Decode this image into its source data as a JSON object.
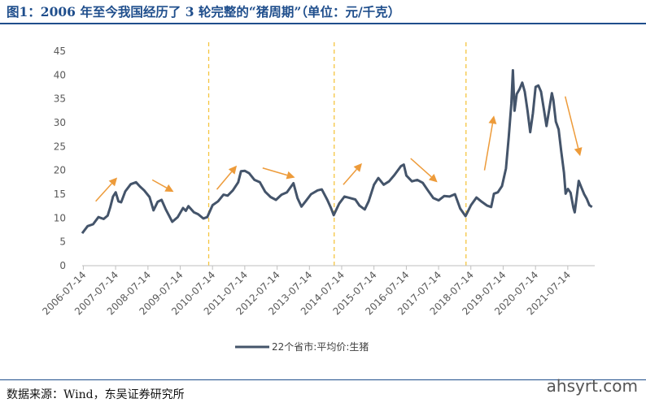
{
  "title": "图1：2006 年至今我国经历了 3 轮完整的“猪周期”（单位：元/千克）",
  "source": "数据来源：Wind，东吴证券研究所",
  "watermark": "ahsyrt.com",
  "colors": {
    "line": "#44546a",
    "arrow": "#ed9b3a",
    "divider": "#f5c540",
    "axis": "#bfbfbf"
  },
  "chart_data": {
    "type": "line",
    "title": "",
    "xlabel": "",
    "ylabel": "",
    "ylim": [
      0,
      45
    ],
    "yticks": [
      0,
      5,
      10,
      15,
      20,
      25,
      30,
      35,
      40,
      45
    ],
    "xlim": [
      "2006-07-01",
      "2022-05-15"
    ],
    "xticks": [
      "2006-07-14",
      "2007-07-14",
      "2008-07-14",
      "2009-07-14",
      "2010-07-14",
      "2011-07-14",
      "2012-07-14",
      "2013-07-14",
      "2014-07-14",
      "2015-07-14",
      "2016-07-14",
      "2017-07-14",
      "2018-07-14",
      "2019-07-14",
      "2020-07-14",
      "2021-07-14"
    ],
    "legend": {
      "position": "bottom",
      "label": "22个省市:平均价:生猪"
    },
    "grid": false,
    "dividers": [
      "2010-06-01",
      "2014-04-20",
      "2018-05-20"
    ],
    "arrows": [
      {
        "from": [
          "2006-12-01",
          13.5
        ],
        "to": [
          "2007-08-01",
          18.5
        ]
      },
      {
        "from": [
          "2008-09-01",
          18.0
        ],
        "to": [
          "2009-05-01",
          15.5
        ]
      },
      {
        "from": [
          "2010-09-01",
          16.0
        ],
        "to": [
          "2011-04-15",
          21.0
        ]
      },
      {
        "from": [
          "2012-02-01",
          20.5
        ],
        "to": [
          "2013-02-01",
          18.5
        ]
      },
      {
        "from": [
          "2014-08-01",
          17.0
        ],
        "to": [
          "2015-03-01",
          21.5
        ]
      },
      {
        "from": [
          "2016-09-01",
          22.5
        ],
        "to": [
          "2017-07-01",
          17.5
        ]
      },
      {
        "from": [
          "2018-12-15",
          20.0
        ],
        "to": [
          "2019-04-01",
          31.5
        ]
      },
      {
        "from": [
          "2021-06-15",
          35.5
        ],
        "to": [
          "2021-12-01",
          23.0
        ]
      }
    ],
    "series": [
      {
        "name": "22个省市:平均价:生猪",
        "points": [
          [
            "2006-07-01",
            6.8
          ],
          [
            "2006-09-01",
            8.3
          ],
          [
            "2006-11-01",
            8.7
          ],
          [
            "2007-01-01",
            10.2
          ],
          [
            "2007-03-01",
            9.8
          ],
          [
            "2007-04-15",
            10.5
          ],
          [
            "2007-05-15",
            12.3
          ],
          [
            "2007-06-15",
            14.5
          ],
          [
            "2007-07-15",
            15.4
          ],
          [
            "2007-08-15",
            13.5
          ],
          [
            "2007-09-15",
            13.3
          ],
          [
            "2007-11-01",
            15.6
          ],
          [
            "2008-01-01",
            17.1
          ],
          [
            "2008-03-01",
            17.5
          ],
          [
            "2008-04-15",
            16.6
          ],
          [
            "2008-06-01",
            15.8
          ],
          [
            "2008-08-01",
            14.4
          ],
          [
            "2008-09-15",
            11.6
          ],
          [
            "2008-11-01",
            13.4
          ],
          [
            "2008-12-15",
            13.8
          ],
          [
            "2009-02-01",
            11.8
          ],
          [
            "2009-03-15",
            10.3
          ],
          [
            "2009-04-15",
            9.2
          ],
          [
            "2009-06-15",
            10.2
          ],
          [
            "2009-08-15",
            12.1
          ],
          [
            "2009-09-15",
            11.5
          ],
          [
            "2009-10-15",
            12.5
          ],
          [
            "2009-12-15",
            11.2
          ],
          [
            "2010-02-01",
            10.8
          ],
          [
            "2010-04-01",
            9.9
          ],
          [
            "2010-05-15",
            10.2
          ],
          [
            "2010-07-15",
            12.7
          ],
          [
            "2010-09-15",
            13.5
          ],
          [
            "2010-11-15",
            14.9
          ],
          [
            "2011-01-01",
            14.7
          ],
          [
            "2011-03-01",
            15.8
          ],
          [
            "2011-05-01",
            17.5
          ],
          [
            "2011-06-01",
            19.8
          ],
          [
            "2011-07-15",
            19.9
          ],
          [
            "2011-09-01",
            19.4
          ],
          [
            "2011-11-01",
            18.0
          ],
          [
            "2012-01-01",
            17.5
          ],
          [
            "2012-03-01",
            15.5
          ],
          [
            "2012-05-01",
            14.4
          ],
          [
            "2012-07-01",
            13.8
          ],
          [
            "2012-09-01",
            14.9
          ],
          [
            "2012-11-01",
            15.4
          ],
          [
            "2013-01-15",
            17.3
          ],
          [
            "2013-03-01",
            14.2
          ],
          [
            "2013-04-15",
            12.4
          ],
          [
            "2013-06-01",
            13.5
          ],
          [
            "2013-08-01",
            15.0
          ],
          [
            "2013-10-15",
            15.8
          ],
          [
            "2013-12-01",
            16.0
          ],
          [
            "2014-02-01",
            13.8
          ],
          [
            "2014-03-15",
            12.1
          ],
          [
            "2014-04-15",
            10.6
          ],
          [
            "2014-06-15",
            13.0
          ],
          [
            "2014-08-15",
            14.5
          ],
          [
            "2014-10-15",
            14.2
          ],
          [
            "2014-12-15",
            13.9
          ],
          [
            "2015-02-01",
            12.6
          ],
          [
            "2015-04-01",
            11.8
          ],
          [
            "2015-05-15",
            13.5
          ],
          [
            "2015-07-15",
            17.0
          ],
          [
            "2015-09-01",
            18.4
          ],
          [
            "2015-11-01",
            17.0
          ],
          [
            "2016-01-01",
            17.7
          ],
          [
            "2016-03-01",
            19.0
          ],
          [
            "2016-05-15",
            20.9
          ],
          [
            "2016-06-15",
            21.2
          ],
          [
            "2016-07-15",
            18.9
          ],
          [
            "2016-09-15",
            17.7
          ],
          [
            "2016-11-15",
            18.0
          ],
          [
            "2017-01-15",
            17.4
          ],
          [
            "2017-03-15",
            15.8
          ],
          [
            "2017-05-15",
            14.2
          ],
          [
            "2017-07-15",
            13.7
          ],
          [
            "2017-09-15",
            14.6
          ],
          [
            "2017-11-15",
            14.5
          ],
          [
            "2018-01-15",
            15.0
          ],
          [
            "2018-03-15",
            12.0
          ],
          [
            "2018-05-15",
            10.4
          ],
          [
            "2018-07-15",
            12.7
          ],
          [
            "2018-09-15",
            14.3
          ],
          [
            "2018-11-15",
            13.4
          ],
          [
            "2019-01-15",
            12.6
          ],
          [
            "2019-03-01",
            12.3
          ],
          [
            "2019-04-01",
            15.1
          ],
          [
            "2019-05-15",
            15.4
          ],
          [
            "2019-07-01",
            16.7
          ],
          [
            "2019-08-15",
            20.4
          ],
          [
            "2019-09-15",
            27.0
          ],
          [
            "2019-10-15",
            34.0
          ],
          [
            "2019-11-01",
            41.0
          ],
          [
            "2019-11-20",
            32.5
          ],
          [
            "2019-12-15",
            36.0
          ],
          [
            "2020-01-15",
            37.0
          ],
          [
            "2020-02-15",
            38.4
          ],
          [
            "2020-03-15",
            36.5
          ],
          [
            "2020-04-15",
            32.5
          ],
          [
            "2020-05-15",
            28.0
          ],
          [
            "2020-06-15",
            32.0
          ],
          [
            "2020-07-15",
            37.5
          ],
          [
            "2020-08-15",
            37.8
          ],
          [
            "2020-09-15",
            36.5
          ],
          [
            "2020-10-15",
            33.0
          ],
          [
            "2020-11-15",
            29.3
          ],
          [
            "2020-12-15",
            32.6
          ],
          [
            "2021-01-15",
            36.2
          ],
          [
            "2021-02-01",
            34.8
          ],
          [
            "2021-03-01",
            30.2
          ],
          [
            "2021-04-01",
            28.6
          ],
          [
            "2021-05-01",
            24.0
          ],
          [
            "2021-06-01",
            19.5
          ],
          [
            "2021-06-20",
            15.1
          ],
          [
            "2021-07-15",
            16.1
          ],
          [
            "2021-08-15",
            15.3
          ],
          [
            "2021-09-15",
            12.2
          ],
          [
            "2021-10-01",
            11.2
          ],
          [
            "2021-10-20",
            14.0
          ],
          [
            "2021-11-15",
            17.8
          ],
          [
            "2021-12-15",
            16.4
          ],
          [
            "2022-01-15",
            15.0
          ],
          [
            "2022-02-15",
            14.0
          ],
          [
            "2022-03-15",
            12.7
          ],
          [
            "2022-04-15",
            12.3
          ]
        ]
      }
    ]
  }
}
